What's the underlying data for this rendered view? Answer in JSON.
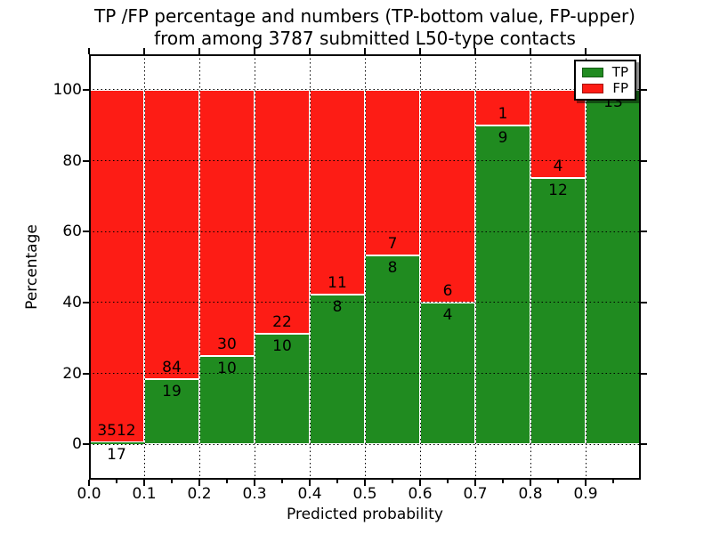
{
  "title": {
    "line1": "TP /FP percentage and numbers (TP-bottom value, FP-upper)",
    "line2": "from among 3787 submitted L50-type contacts"
  },
  "x_axis": {
    "label": "Predicted probability",
    "tick_labels": [
      "0.0",
      "0.1",
      "0.2",
      "0.3",
      "0.4",
      "0.5",
      "0.6",
      "0.7",
      "0.8",
      "0.9"
    ]
  },
  "y_axis": {
    "label": "Percentage",
    "tick_labels": [
      "0",
      "20",
      "40",
      "60",
      "80",
      "100"
    ],
    "tick_values": [
      0,
      20,
      40,
      60,
      80,
      100
    ]
  },
  "legend": {
    "items": [
      {
        "label": "TP",
        "color": "#208b20"
      },
      {
        "label": "FP",
        "color": "#fd1c15"
      }
    ]
  },
  "colors": {
    "tp": "#208b20",
    "fp": "#fd1c15",
    "bar_edge": "#ffffff",
    "grid": "#000000"
  },
  "chart_data": {
    "type": "bar",
    "stacked": true,
    "normalized_to_percent": true,
    "title": "TP /FP percentage and numbers (TP-bottom value, FP-upper) from among 3787 submitted L50-type contacts",
    "xlabel": "Predicted probability",
    "ylabel": "Percentage",
    "xlim": [
      0.0,
      1.0
    ],
    "ylim": [
      -10,
      110
    ],
    "bin_width": 0.1,
    "total_contacts": 3787,
    "grid": true,
    "legend_position": "upper right",
    "categories": [
      "0.0-0.1",
      "0.1-0.2",
      "0.2-0.3",
      "0.3-0.4",
      "0.4-0.5",
      "0.5-0.6",
      "0.6-0.7",
      "0.7-0.8",
      "0.8-0.9",
      "0.9-1.0"
    ],
    "series": [
      {
        "name": "TP",
        "values": [
          17,
          19,
          10,
          10,
          8,
          8,
          4,
          9,
          12,
          13
        ]
      },
      {
        "name": "FP",
        "values": [
          3512,
          84,
          30,
          22,
          11,
          7,
          6,
          1,
          4,
          0
        ]
      }
    ],
    "tp_percent": [
      0.48,
      18.45,
      25.0,
      31.25,
      42.11,
      53.33,
      40.0,
      90.0,
      75.0,
      100.0
    ],
    "bar_labels": {
      "tp": [
        "17",
        "19",
        "10",
        "10",
        "8",
        "8",
        "4",
        "9",
        "12",
        "13"
      ],
      "fp": [
        "3512",
        "84",
        "30",
        "22",
        "11",
        "7",
        "6",
        "1",
        "4",
        ""
      ]
    }
  }
}
